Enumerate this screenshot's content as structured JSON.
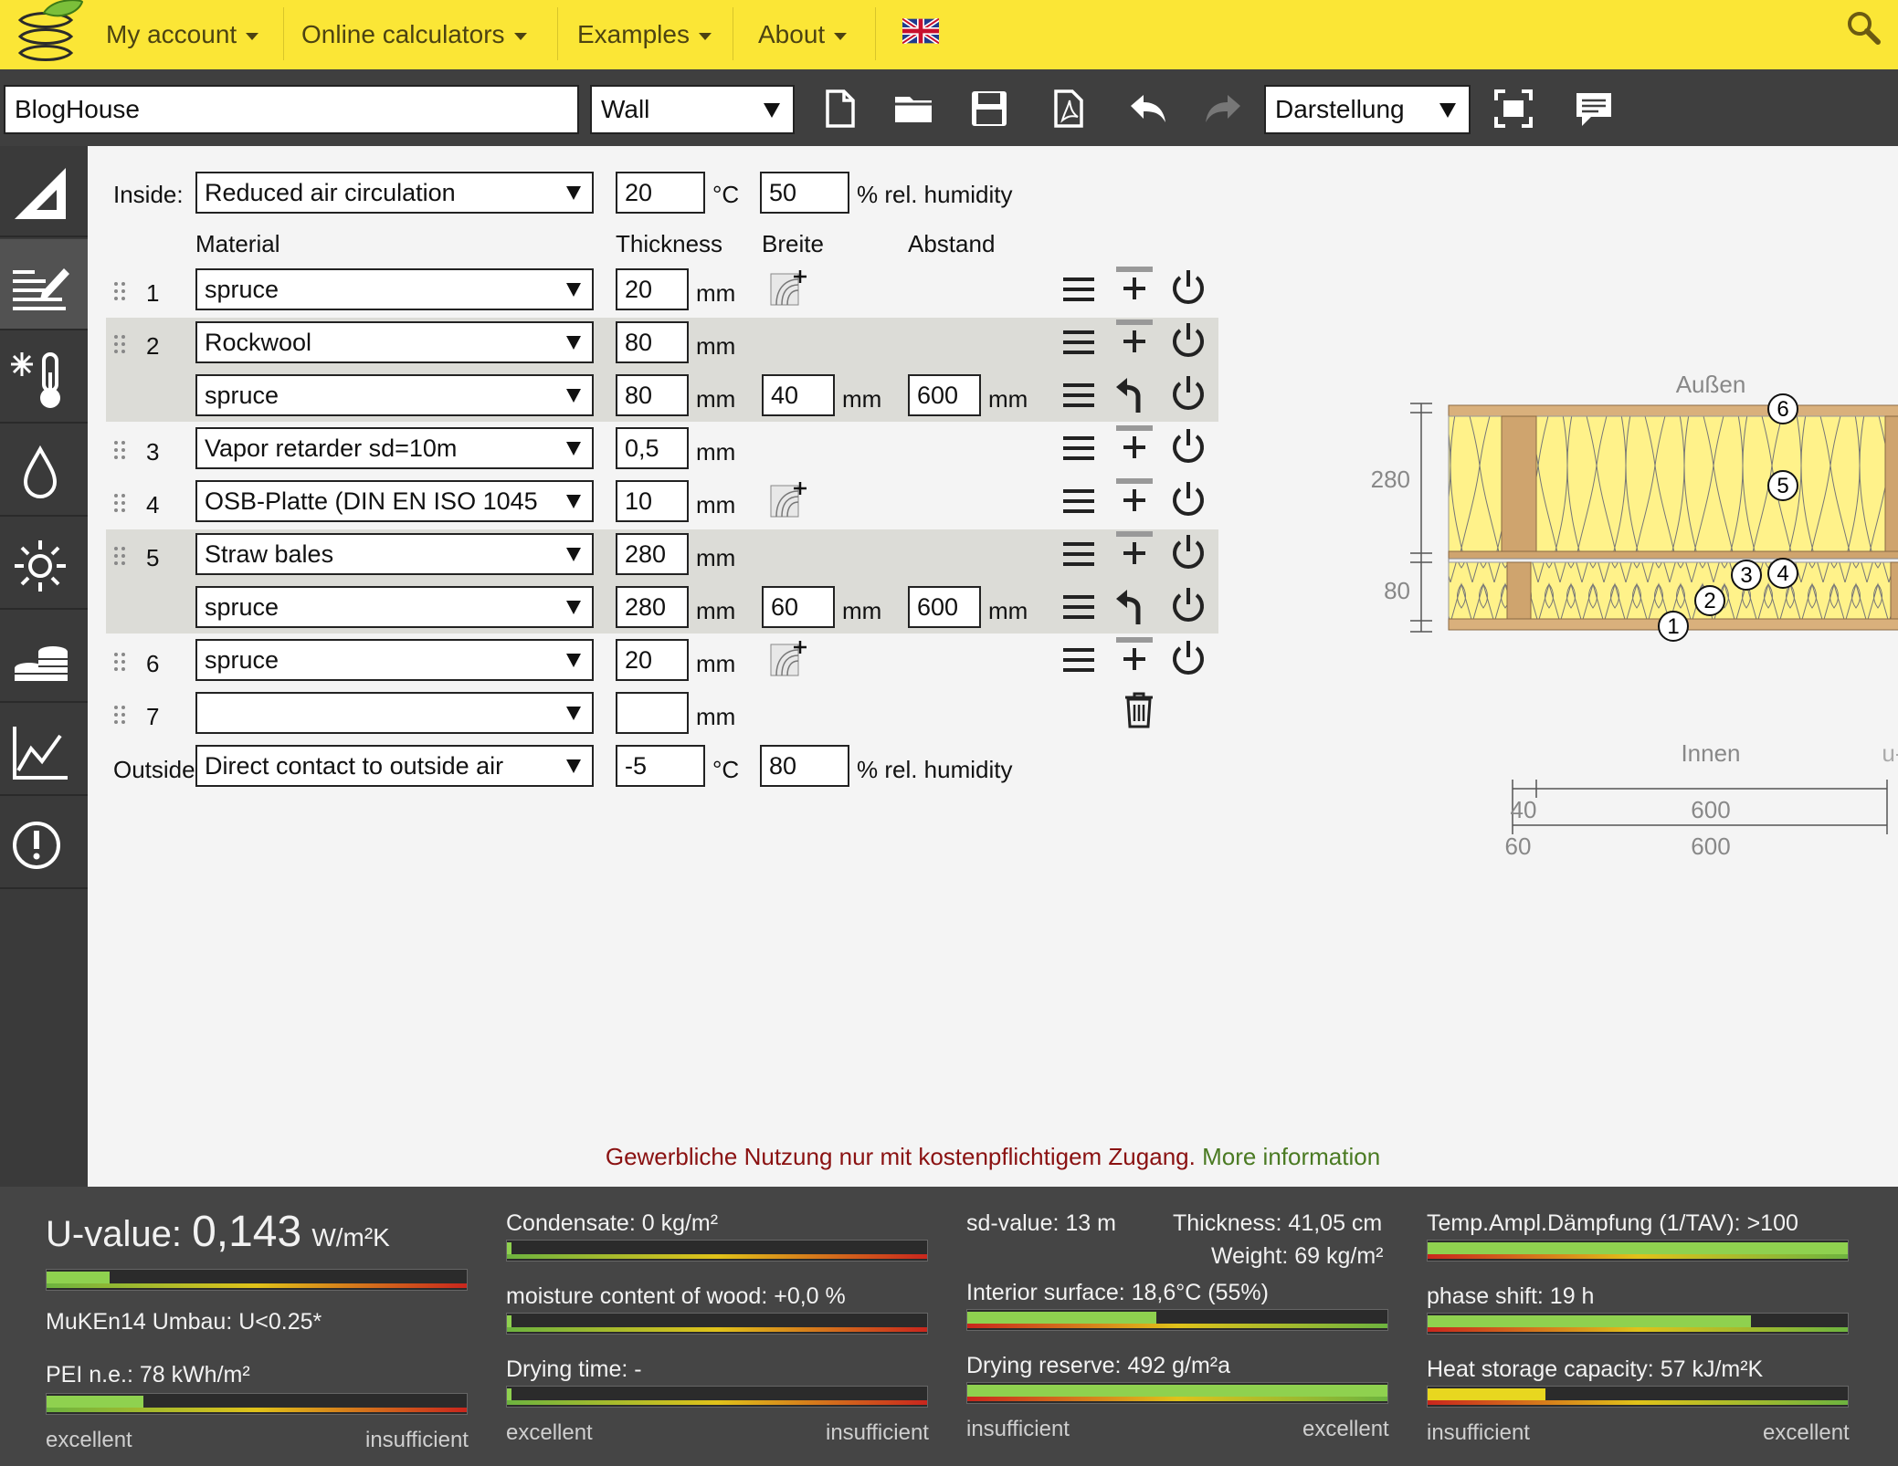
{
  "menu": {
    "items": [
      {
        "label": "My account"
      },
      {
        "label": "Online calculators"
      },
      {
        "label": "Examples"
      },
      {
        "label": "About"
      }
    ]
  },
  "toolbar": {
    "project_name": "BlogHouse",
    "component_type": "Wall",
    "view_mode": "Darstellung"
  },
  "layers": {
    "inside_label": "Inside:",
    "inside_condition": "Reduced air circulation",
    "inside_temp": "20",
    "inside_humidity": "50",
    "temp_unit": "°C",
    "humidity_unit": "% rel. humidity",
    "headers": {
      "material": "Material",
      "thickness": "Thickness",
      "width": "Breite",
      "spacing": "Abstand"
    },
    "mm": "mm",
    "rows": [
      {
        "num": "1",
        "material": "spruce",
        "thickness": "20"
      },
      {
        "num": "2",
        "material": "Rockwool",
        "thickness": "80"
      },
      {
        "num": "",
        "material": "spruce",
        "thickness": "80",
        "width": "40",
        "spacing": "600"
      },
      {
        "num": "3",
        "material": "Vapor retarder sd=10m",
        "thickness": "0,5"
      },
      {
        "num": "4",
        "material": "OSB-Platte (DIN EN ISO 1045",
        "thickness": "10"
      },
      {
        "num": "5",
        "material": "Straw bales",
        "thickness": "280"
      },
      {
        "num": "",
        "material": "spruce",
        "thickness": "280",
        "width": "60",
        "spacing": "600"
      },
      {
        "num": "6",
        "material": "spruce",
        "thickness": "20"
      },
      {
        "num": "7",
        "material": "",
        "thickness": ""
      }
    ],
    "outside_label": "Outside",
    "outside_condition": "Direct contact to outside air",
    "outside_temp": "-5",
    "outside_humidity": "80"
  },
  "diagram": {
    "outside_label": "Außen",
    "inside_label": "Innen",
    "watermark": "u-wert.net",
    "dim_280": "280",
    "dim_80": "80",
    "dim_40": "40",
    "dim_60": "60",
    "dim_600a": "600",
    "dim_600b": "600",
    "markers": [
      "1",
      "2",
      "3",
      "4",
      "5",
      "6"
    ]
  },
  "notice": {
    "text": "Gewerbliche Nutzung nur mit kostenpflichtigem Zugang.",
    "link": "More information"
  },
  "results": {
    "u_value_label": "U-value:",
    "u_value": "0,143",
    "u_value_unit": "W/m²K",
    "u_value_level": 0.15,
    "muken": "MuKEn14 Umbau: U<0.25*",
    "pei": "PEI n.e.: 78 kWh/m²",
    "pei_level": 0.23,
    "condensate": "Condensate: 0 kg/m²",
    "condensate_level": 0.01,
    "wood_moisture": "moisture content of wood: +0,0 %",
    "wood_moisture_level": 0.01,
    "drying_time": "Drying time: -",
    "drying_time_level": 0.01,
    "sd_value": "sd-value: 13 m",
    "thickness": "Thickness: 41,05 cm",
    "weight": "Weight: 69 kg/m²",
    "interior_surface": "Interior surface: 18,6°C (55%)",
    "interior_surface_level": 0.45,
    "drying_reserve": "Drying reserve: 492 g/m²a",
    "drying_reserve_level": 1.0,
    "temp_amplitude": "Temp.Ampl.Dämpfung (1/TAV): >100",
    "temp_amplitude_level": 1.0,
    "phase_shift": "phase shift: 19 h",
    "phase_shift_level": 0.77,
    "heat_storage": "Heat storage capacity: 57 kJ/m²K",
    "heat_storage_level": 0.28,
    "scale_excellent": "excellent",
    "scale_insufficient": "insufficient"
  }
}
